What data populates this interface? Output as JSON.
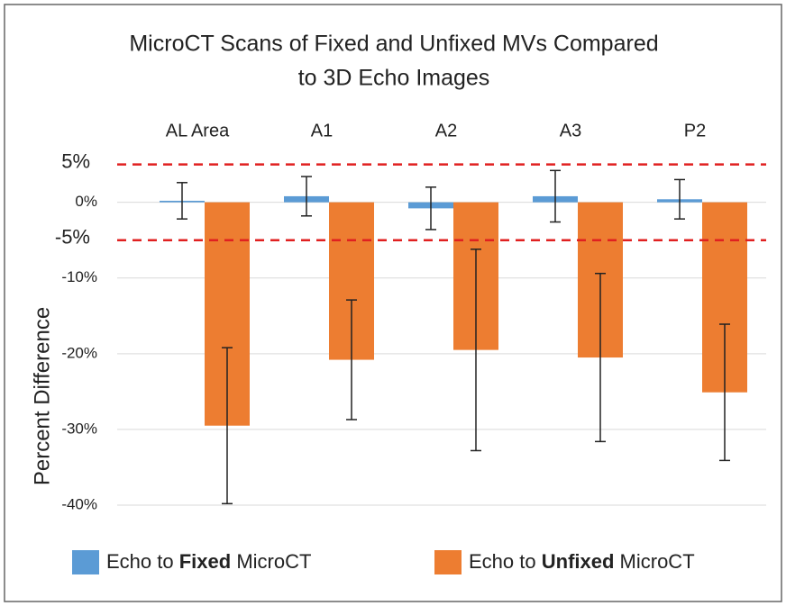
{
  "chart_data": {
    "type": "bar",
    "title": [
      "MicroCT Scans of Fixed and Unfixed MVs Compared",
      "to 3D Echo Images"
    ],
    "y_label": "Percent Difference",
    "categories": [
      "AL Area",
      "A1",
      "A2",
      "A3",
      "P2"
    ],
    "series": [
      {
        "name": "Echo to Fixed MicroCT",
        "color": "#5b9bd5",
        "values": [
          0.2,
          0.8,
          -0.8,
          0.8,
          0.4
        ],
        "errors": [
          2.4,
          2.6,
          2.8,
          3.4,
          2.6
        ]
      },
      {
        "name": "Echo to Unfixed MicroCT",
        "color": "#ed7d31",
        "values": [
          -29.5,
          -20.8,
          -19.5,
          -20.5,
          -25.1
        ],
        "errors": [
          10.3,
          7.9,
          13.3,
          11.1,
          9.0
        ]
      }
    ],
    "ylim": [
      -40,
      6.5
    ],
    "yticks": [
      {
        "value": 0,
        "label": "0%"
      },
      {
        "value": -10,
        "label": "-10%"
      },
      {
        "value": -20,
        "label": "-20%"
      },
      {
        "value": -30,
        "label": "-30%"
      },
      {
        "value": -40,
        "label": "-40%"
      }
    ],
    "reference_lines": [
      {
        "value": 5,
        "label": "5%"
      },
      {
        "value": -5,
        "label": "-5%"
      }
    ],
    "reference_color": "#e02020",
    "grid": true
  }
}
